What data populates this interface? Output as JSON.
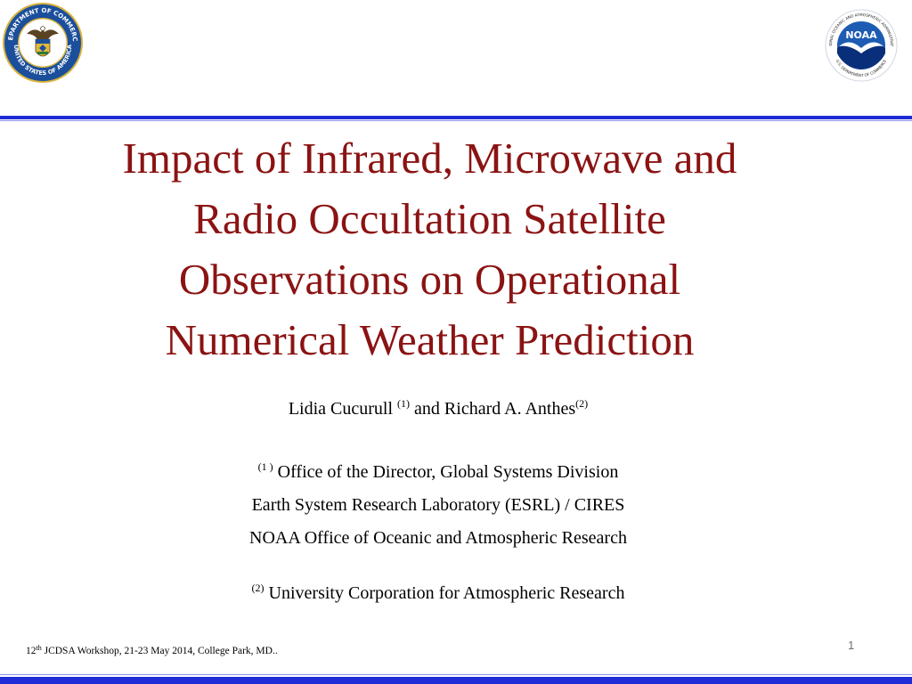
{
  "logos": {
    "commerce": {
      "text_top": "DEPARTMENT OF COMMERCE",
      "text_bottom": "UNITED STATES OF AMERICA",
      "icon": "eagle-seal-icon",
      "colors": {
        "ring": "#1b4f9c",
        "ring_edge": "#d8b23c",
        "shield": "#e2b838"
      }
    },
    "noaa": {
      "label": "NOAA",
      "ring_text": "NATIONAL OCEANIC AND ATMOSPHERIC ADMINISTRATION",
      "ring_text_bottom": "U.S. DEPARTMENT OF COMMERCE",
      "icon": "noaa-bird-icon",
      "colors": {
        "sky": "#1e5cb3",
        "sea": "#0a2f7a"
      }
    }
  },
  "title": {
    "lines": [
      "Impact of Infrared, Microwave and",
      "Radio Occultation Satellite",
      "Observations on Operational",
      "Numerical Weather Prediction"
    ],
    "color": "#8b1313"
  },
  "authors": {
    "first_name": "Lidia Cucurull ",
    "first_mark": "(1)",
    "conjunction": " and Richard A. Anthes",
    "second_mark": "(2)"
  },
  "affiliation_1": {
    "mark": "(1 )",
    "lines": [
      " Office of the Director, Global Systems Division",
      "Earth System Research Laboratory (ESRL) / CIRES",
      "NOAA Office of Oceanic and Atmospheric Research"
    ]
  },
  "affiliation_2": {
    "mark": "(2)",
    "text": " University Corporation for Atmospheric Research"
  },
  "footer": {
    "number": "12",
    "ordinal": "th",
    "text": " JCDSA Workshop, 21-23 May 2014, College Park, MD.."
  },
  "slide_number": "1",
  "colors": {
    "rule": "#1f2bd6",
    "title": "#8b1313"
  }
}
